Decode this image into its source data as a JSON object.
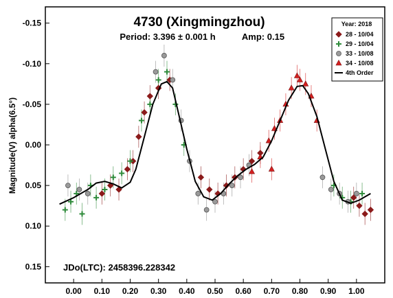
{
  "chart_data": {
    "type": "scatter",
    "title": "4730 (Xingmingzhou)",
    "subtitle_period": "Period: 3.396 ± 0.001 h",
    "subtitle_amp": "Amp: 0.15",
    "ylabel": "Magnitude(V) alpha(6.5°)",
    "xlabel": "",
    "annotation": "JDo(LTC): 2458396.228342",
    "xlim": [
      -0.1,
      1.1
    ],
    "ylim": [
      0.17,
      -0.17
    ],
    "y_inverted": true,
    "x_ticks": [
      "0.00",
      "0.10",
      "0.20",
      "0.30",
      "0.40",
      "0.50",
      "0.60",
      "0.70",
      "0.80",
      "0.90",
      "1.00"
    ],
    "y_ticks": [
      "-0.15",
      "-0.10",
      "-0.05",
      "0.00",
      "0.05",
      "0.10",
      "0.15"
    ],
    "legend": {
      "title": "Year: 2018",
      "placement": "top-right",
      "entries": [
        {
          "label": "28 - 10/04",
          "marker": "diamond",
          "color": "#8b1a1a"
        },
        {
          "label": "29 - 10/04",
          "marker": "plus",
          "color": "#2e8b3a"
        },
        {
          "label": "33 - 10/08",
          "marker": "circle",
          "color": "#8c8c8c"
        },
        {
          "label": "34 - 10/08",
          "marker": "triangle",
          "color": "#d42020"
        },
        {
          "label": "4th Order",
          "marker": "line",
          "color": "#000000"
        }
      ]
    },
    "series": [
      {
        "name": "28 - 10/04",
        "marker": "diamond",
        "color": "#8b1a1a",
        "points": [
          [
            0.1,
            0.06
          ],
          [
            0.13,
            0.05
          ],
          [
            0.16,
            0.055
          ],
          [
            0.19,
            0.03
          ],
          [
            0.21,
            0.02
          ],
          [
            0.23,
            -0.01
          ],
          [
            0.25,
            -0.04
          ],
          [
            0.27,
            -0.06
          ],
          [
            0.3,
            -0.07
          ],
          [
            0.34,
            -0.08
          ],
          [
            0.45,
            0.04
          ],
          [
            0.48,
            0.055
          ],
          [
            0.51,
            0.06
          ],
          [
            0.54,
            0.05
          ],
          [
            0.57,
            0.04
          ],
          [
            0.6,
            0.03
          ],
          [
            0.63,
            0.02
          ],
          [
            0.66,
            0.01
          ],
          [
            0.99,
            0.065
          ],
          [
            1.01,
            0.075
          ],
          [
            1.03,
            0.085
          ],
          [
            1.05,
            0.08
          ]
        ]
      },
      {
        "name": "29 - 10/04",
        "marker": "plus",
        "color": "#2e8b3a",
        "points": [
          [
            -0.03,
            0.08
          ],
          [
            -0.01,
            0.07
          ],
          [
            0.01,
            0.06
          ],
          [
            0.03,
            0.085
          ],
          [
            0.06,
            0.05
          ],
          [
            0.08,
            0.065
          ],
          [
            0.11,
            0.055
          ],
          [
            0.14,
            0.04
          ],
          [
            0.17,
            0.035
          ],
          [
            0.2,
            0.02
          ],
          [
            0.24,
            -0.03
          ],
          [
            0.27,
            -0.05
          ],
          [
            0.3,
            -0.08
          ],
          [
            0.33,
            -0.09
          ],
          [
            0.36,
            -0.05
          ],
          [
            0.39,
            0.0
          ],
          [
            0.92,
            0.05
          ],
          [
            0.95,
            0.065
          ],
          [
            0.98,
            0.07
          ],
          [
            1.02,
            0.06
          ]
        ]
      },
      {
        "name": "33 - 10/08",
        "marker": "circle",
        "color": "#8c8c8c",
        "points": [
          [
            -0.02,
            0.05
          ],
          [
            0.02,
            0.055
          ],
          [
            0.05,
            0.06
          ],
          [
            0.29,
            -0.09
          ],
          [
            0.32,
            -0.11
          ],
          [
            0.35,
            -0.08
          ],
          [
            0.38,
            -0.03
          ],
          [
            0.41,
            0.02
          ],
          [
            0.44,
            0.06
          ],
          [
            0.47,
            0.08
          ],
          [
            0.5,
            0.07
          ],
          [
            0.53,
            0.06
          ],
          [
            0.56,
            0.05
          ],
          [
            0.59,
            0.04
          ],
          [
            0.62,
            0.025
          ],
          [
            0.88,
            0.04
          ],
          [
            0.91,
            0.055
          ],
          [
            0.94,
            0.06
          ],
          [
            0.97,
            0.07
          ],
          [
            1.0,
            0.06
          ]
        ]
      },
      {
        "name": "34 - 10/08",
        "marker": "triangle",
        "color": "#d42020",
        "points": [
          [
            0.63,
            0.033
          ],
          [
            0.66,
            0.015
          ],
          [
            0.69,
            -0.005
          ],
          [
            0.71,
            -0.02
          ],
          [
            0.73,
            -0.03
          ],
          [
            0.75,
            -0.05
          ],
          [
            0.77,
            -0.07
          ],
          [
            0.79,
            -0.085
          ],
          [
            0.8,
            -0.08
          ],
          [
            0.82,
            -0.075
          ],
          [
            0.84,
            -0.06
          ],
          [
            0.86,
            -0.03
          ],
          [
            0.7,
            0.03
          ]
        ]
      }
    ],
    "fit": {
      "name": "4th Order",
      "color": "#000000",
      "points": [
        [
          -0.05,
          0.073
        ],
        [
          0.0,
          0.065
        ],
        [
          0.05,
          0.055
        ],
        [
          0.08,
          0.047
        ],
        [
          0.11,
          0.045
        ],
        [
          0.14,
          0.048
        ],
        [
          0.17,
          0.053
        ],
        [
          0.2,
          0.046
        ],
        [
          0.22,
          0.03
        ],
        [
          0.25,
          -0.01
        ],
        [
          0.28,
          -0.05
        ],
        [
          0.31,
          -0.075
        ],
        [
          0.33,
          -0.078
        ],
        [
          0.35,
          -0.07
        ],
        [
          0.37,
          -0.04
        ],
        [
          0.4,
          0.005
        ],
        [
          0.43,
          0.045
        ],
        [
          0.46,
          0.064
        ],
        [
          0.49,
          0.068
        ],
        [
          0.52,
          0.06
        ],
        [
          0.55,
          0.048
        ],
        [
          0.58,
          0.038
        ],
        [
          0.61,
          0.03
        ],
        [
          0.64,
          0.024
        ],
        [
          0.67,
          0.015
        ],
        [
          0.7,
          -0.005
        ],
        [
          0.73,
          -0.03
        ],
        [
          0.76,
          -0.055
        ],
        [
          0.79,
          -0.072
        ],
        [
          0.81,
          -0.073
        ],
        [
          0.83,
          -0.063
        ],
        [
          0.86,
          -0.035
        ],
        [
          0.89,
          0.005
        ],
        [
          0.92,
          0.045
        ],
        [
          0.95,
          0.068
        ],
        [
          0.98,
          0.072
        ],
        [
          1.01,
          0.068
        ],
        [
          1.05,
          0.06
        ]
      ]
    }
  }
}
